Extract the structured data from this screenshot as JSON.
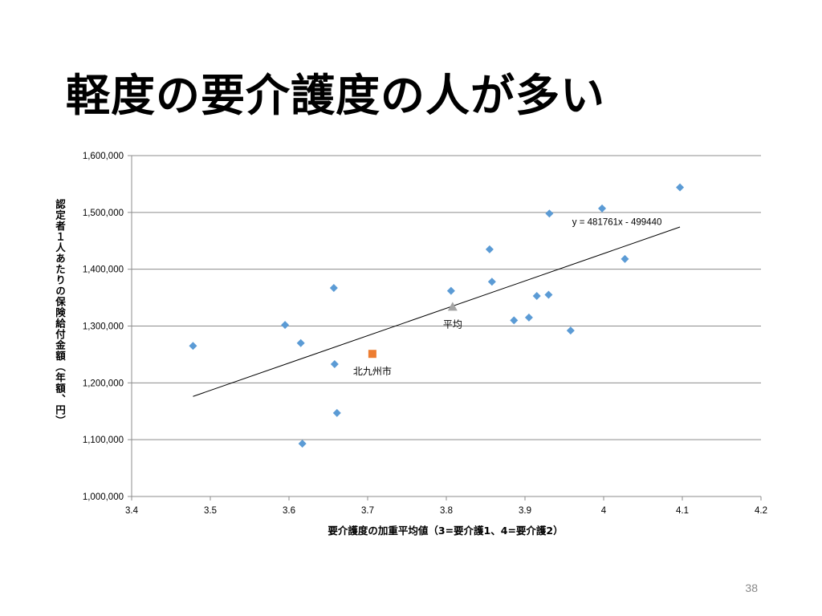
{
  "slide": {
    "title": "軽度の要介護度の人が多い",
    "page_number": "38"
  },
  "chart_data": {
    "type": "scatter",
    "xlabel": "要介護度の加重平均値（3=要介護1、4=要介護2）",
    "ylabel": "認定者１人あたりの保険給付金額（年額、円）",
    "xlim": [
      3.4,
      4.2
    ],
    "ylim": [
      1000000,
      1600000
    ],
    "x_ticks": [
      "3.4",
      "3.5",
      "3.6",
      "3.7",
      "3.8",
      "3.9",
      "4",
      "4.1",
      "4.2"
    ],
    "y_ticks": [
      "1,000,000",
      "1,100,000",
      "1,200,000",
      "1,300,000",
      "1,400,000",
      "1,500,000",
      "1,600,000"
    ],
    "grid": "horizontal",
    "series": [
      {
        "color": "#5b9bd5",
        "marker": "diamond",
        "points": [
          [
            3.478,
            1265000
          ],
          [
            3.595,
            1302000
          ],
          [
            3.615,
            1270000
          ],
          [
            3.617,
            1093000
          ],
          [
            3.657,
            1367000
          ],
          [
            3.658,
            1233000
          ],
          [
            3.661,
            1147000
          ],
          [
            3.806,
            1362000
          ],
          [
            3.855,
            1435000
          ],
          [
            3.858,
            1378000
          ],
          [
            3.886,
            1310000
          ],
          [
            3.905,
            1315000
          ],
          [
            3.915,
            1353000
          ],
          [
            3.93,
            1355000
          ],
          [
            3.931,
            1498000
          ],
          [
            3.958,
            1292000
          ],
          [
            3.998,
            1507000
          ],
          [
            4.027,
            1418000
          ],
          [
            4.097,
            1544000
          ]
        ]
      },
      {
        "color": "#ed7d31",
        "marker": "square",
        "points": [
          [
            3.706,
            1251000
          ]
        ]
      },
      {
        "color": "#a5a5a5",
        "marker": "triangle",
        "points": [
          [
            3.808,
            1334000
          ]
        ]
      }
    ],
    "trendline": {
      "equation": "y = 481761x - 499440",
      "x_range": [
        3.478,
        4.097
      ],
      "color": "#000000"
    },
    "annotations": [
      {
        "text": "北九州市",
        "x": 3.706,
        "y": 1251000
      },
      {
        "text": "平均",
        "x": 3.808,
        "y": 1334000
      }
    ]
  }
}
